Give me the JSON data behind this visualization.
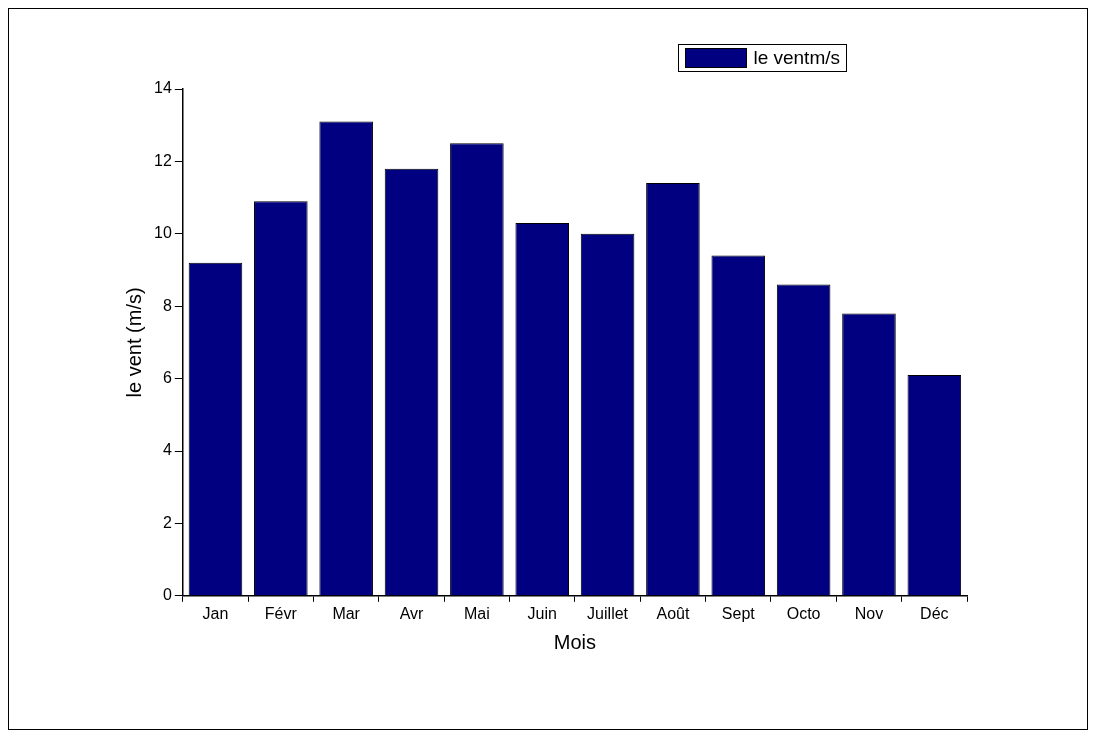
{
  "chart_data": {
    "type": "bar",
    "xlabel": "Mois",
    "ylabel": "le vent (m/s)",
    "categories": [
      "Jan",
      "Févr",
      "Mar",
      "Avr",
      "Mai",
      "Juin",
      "Juillet",
      "Août",
      "Sept",
      "Octo",
      "Nov",
      "Déc"
    ],
    "series": [
      {
        "name": "le ventm/s",
        "color": "#000080",
        "values": [
          9.2,
          10.9,
          13.1,
          11.8,
          12.5,
          10.3,
          10.0,
          11.4,
          9.4,
          8.6,
          7.8,
          6.1
        ]
      }
    ],
    "ylim": [
      0,
      14
    ],
    "yticks": [
      0,
      2,
      4,
      6,
      8,
      10,
      12,
      14
    ],
    "grid": false,
    "legend": "top right"
  }
}
